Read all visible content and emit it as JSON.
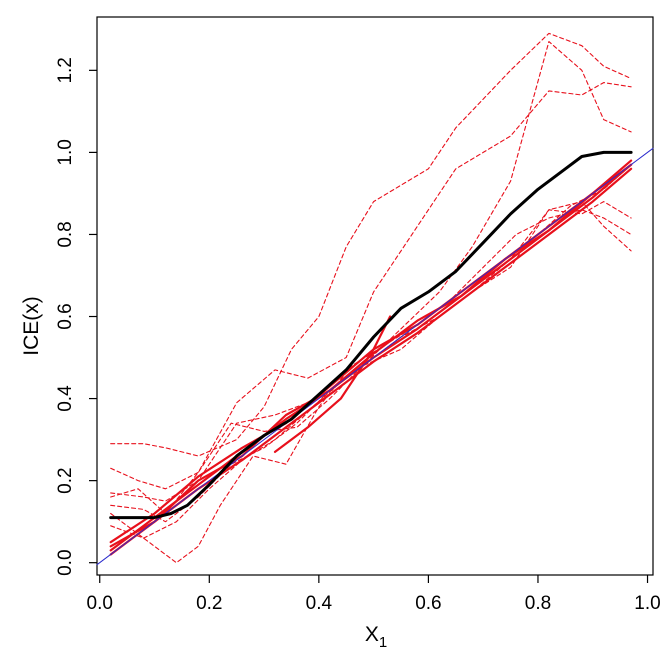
{
  "chart_data": {
    "type": "line",
    "xlabel": "X",
    "xlabel_sub": "1",
    "ylabel": "ICE(x)",
    "xlim": [
      -0.005,
      1.01
    ],
    "ylim": [
      -0.03,
      1.33
    ],
    "x_ticks": [
      0.0,
      0.2,
      0.4,
      0.6,
      0.8,
      1.0
    ],
    "x_tick_labels": [
      "0.0",
      "0.2",
      "0.4",
      "0.6",
      "0.8",
      "1.0"
    ],
    "y_ticks": [
      0.0,
      0.2,
      0.4,
      0.6,
      0.8,
      1.0,
      1.2
    ],
    "y_tick_labels": [
      "0.0",
      "0.2",
      "0.4",
      "0.6",
      "0.8",
      "1.0",
      "1.2"
    ],
    "grid": false,
    "legend": "none",
    "colors": {
      "ice": "#e8101c",
      "pdp": "#000000",
      "reference": "#2a2acc"
    },
    "series": [
      {
        "role": "ice-dashed",
        "style": "dashed",
        "x": [
          0.02,
          0.08,
          0.12,
          0.18,
          0.25,
          0.3,
          0.35,
          0.4,
          0.45,
          0.5,
          0.55,
          0.6,
          0.65,
          0.7,
          0.75,
          0.82,
          0.88,
          0.92,
          0.97
        ],
        "y": [
          0.29,
          0.29,
          0.28,
          0.26,
          0.3,
          0.38,
          0.52,
          0.6,
          0.77,
          0.88,
          0.92,
          0.96,
          1.06,
          1.13,
          1.2,
          1.29,
          1.26,
          1.21,
          1.18
        ]
      },
      {
        "role": "ice-dashed",
        "style": "dashed",
        "x": [
          0.02,
          0.07,
          0.12,
          0.18,
          0.25,
          0.32,
          0.38,
          0.45,
          0.5,
          0.55,
          0.6,
          0.65,
          0.7,
          0.75,
          0.82,
          0.88,
          0.92,
          0.97
        ],
        "y": [
          0.23,
          0.2,
          0.18,
          0.22,
          0.39,
          0.47,
          0.45,
          0.5,
          0.66,
          0.76,
          0.86,
          0.96,
          1.0,
          1.04,
          1.15,
          1.14,
          1.17,
          1.16
        ]
      },
      {
        "role": "ice-dashed",
        "style": "dashed",
        "x": [
          0.02,
          0.08,
          0.12,
          0.18,
          0.25,
          0.32,
          0.4,
          0.48,
          0.55,
          0.62,
          0.68,
          0.75,
          0.82,
          0.88,
          0.92,
          0.97
        ],
        "y": [
          0.17,
          0.16,
          0.15,
          0.2,
          0.34,
          0.36,
          0.4,
          0.48,
          0.57,
          0.66,
          0.77,
          0.93,
          1.27,
          1.2,
          1.08,
          1.05
        ]
      },
      {
        "role": "ice-dashed",
        "style": "dashed",
        "x": [
          0.02,
          0.07,
          0.12,
          0.18,
          0.24,
          0.3,
          0.36,
          0.42,
          0.48,
          0.55,
          0.62,
          0.68,
          0.75,
          0.82,
          0.88,
          0.92,
          0.97
        ],
        "y": [
          0.16,
          0.18,
          0.12,
          0.22,
          0.34,
          0.32,
          0.33,
          0.4,
          0.48,
          0.52,
          0.6,
          0.66,
          0.72,
          0.86,
          0.85,
          0.88,
          0.84
        ]
      },
      {
        "role": "ice-dashed",
        "style": "dashed",
        "x": [
          0.02,
          0.08,
          0.12,
          0.18,
          0.24,
          0.3,
          0.36,
          0.42,
          0.48,
          0.55,
          0.62,
          0.68,
          0.75,
          0.82,
          0.88,
          0.92,
          0.97
        ],
        "y": [
          0.14,
          0.13,
          0.1,
          0.16,
          0.24,
          0.28,
          0.34,
          0.42,
          0.48,
          0.55,
          0.6,
          0.66,
          0.74,
          0.86,
          0.88,
          0.82,
          0.76
        ]
      },
      {
        "role": "ice-dashed",
        "style": "dashed",
        "x": [
          0.02,
          0.06,
          0.1,
          0.14,
          0.18,
          0.22,
          0.28,
          0.34,
          0.4,
          0.46,
          0.52,
          0.58,
          0.64,
          0.7,
          0.76,
          0.82,
          0.88,
          0.92,
          0.97
        ],
        "y": [
          0.12,
          0.08,
          0.04,
          0.0,
          0.04,
          0.14,
          0.26,
          0.24,
          0.38,
          0.48,
          0.53,
          0.58,
          0.64,
          0.72,
          0.8,
          0.84,
          0.86,
          0.84,
          0.8
        ]
      },
      {
        "role": "ice-dashed",
        "style": "dashed",
        "x": [
          0.02,
          0.08,
          0.14,
          0.2,
          0.26,
          0.32,
          0.38,
          0.44,
          0.5,
          0.56,
          0.62,
          0.68,
          0.74,
          0.8,
          0.86,
          0.92,
          0.97
        ],
        "y": [
          0.09,
          0.06,
          0.1,
          0.18,
          0.25,
          0.3,
          0.37,
          0.44,
          0.5,
          0.56,
          0.62,
          0.68,
          0.74,
          0.8,
          0.87,
          0.91,
          0.97
        ]
      },
      {
        "role": "ice-solid",
        "style": "solid",
        "x": [
          0.02,
          0.1,
          0.18,
          0.26,
          0.34,
          0.42,
          0.5,
          0.58,
          0.66,
          0.74,
          0.82,
          0.9,
          0.97
        ],
        "y": [
          0.03,
          0.11,
          0.19,
          0.27,
          0.35,
          0.42,
          0.5,
          0.57,
          0.65,
          0.73,
          0.81,
          0.89,
          0.97
        ]
      },
      {
        "role": "ice-solid",
        "style": "solid",
        "x": [
          0.02,
          0.1,
          0.18,
          0.26,
          0.34,
          0.42,
          0.5,
          0.58,
          0.66,
          0.74,
          0.82,
          0.9,
          0.97
        ],
        "y": [
          0.05,
          0.12,
          0.21,
          0.28,
          0.34,
          0.43,
          0.52,
          0.58,
          0.66,
          0.74,
          0.82,
          0.9,
          0.98
        ]
      },
      {
        "role": "ice-solid",
        "style": "solid",
        "x": [
          0.02,
          0.1,
          0.18,
          0.26,
          0.34,
          0.42,
          0.5,
          0.58,
          0.66,
          0.74,
          0.82,
          0.9,
          0.97
        ],
        "y": [
          0.02,
          0.1,
          0.18,
          0.25,
          0.33,
          0.41,
          0.49,
          0.56,
          0.64,
          0.72,
          0.8,
          0.88,
          0.96
        ]
      },
      {
        "role": "ice-solid",
        "style": "solid",
        "x": [
          0.02,
          0.1,
          0.18,
          0.26,
          0.34,
          0.42,
          0.5,
          0.58,
          0.66,
          0.74,
          0.82,
          0.9,
          0.97
        ],
        "y": [
          0.04,
          0.1,
          0.2,
          0.26,
          0.36,
          0.42,
          0.51,
          0.59,
          0.65,
          0.74,
          0.81,
          0.9,
          0.97
        ]
      },
      {
        "role": "ice-solid",
        "style": "solid",
        "x": [
          0.32,
          0.38,
          0.44,
          0.5,
          0.53
        ],
        "y": [
          0.27,
          0.33,
          0.4,
          0.52,
          0.6
        ]
      },
      {
        "role": "pdp",
        "style": "solid",
        "x": [
          0.02,
          0.05,
          0.1,
          0.13,
          0.16,
          0.2,
          0.25,
          0.3,
          0.35,
          0.4,
          0.45,
          0.5,
          0.55,
          0.6,
          0.65,
          0.7,
          0.75,
          0.8,
          0.85,
          0.88,
          0.92,
          0.97
        ],
        "y": [
          0.11,
          0.11,
          0.11,
          0.12,
          0.14,
          0.19,
          0.26,
          0.31,
          0.35,
          0.41,
          0.47,
          0.55,
          0.62,
          0.66,
          0.71,
          0.78,
          0.85,
          0.91,
          0.96,
          0.99,
          1.0,
          1.0
        ]
      },
      {
        "role": "reference",
        "style": "solid",
        "x": [
          -0.005,
          1.01
        ],
        "y": [
          -0.005,
          1.01
        ]
      }
    ]
  }
}
